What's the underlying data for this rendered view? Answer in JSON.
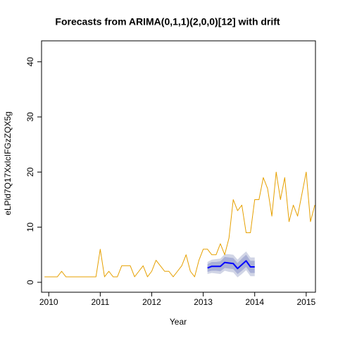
{
  "chart_data": {
    "type": "line",
    "title": "Forecasts from ARIMA(0,1,1)(2,0,0)[12] with drift",
    "x_label": "Year",
    "y_label": "eLPld7Q17XxIcIFGzZQX5g",
    "xlim": [
      2009.86,
      2015.18
    ],
    "ylim": [
      -1.8,
      43.8
    ],
    "xticks": [
      2010,
      2011,
      2012,
      2013,
      2014,
      2015
    ],
    "yticks": [
      0,
      10,
      20,
      30,
      40
    ],
    "intervals": [
      {
        "color": "#d1d5e6",
        "x": [
          2013.083,
          2013.167,
          2013.25,
          2013.333,
          2013.417,
          2013.5,
          2013.583,
          2013.667,
          2013.75,
          2013.833,
          2013.917,
          2014.0
        ],
        "lower": [
          1.5,
          1.7,
          1.6,
          1.5,
          2.1,
          1.9,
          1.8,
          0.9,
          1.5,
          2.2,
          1.1,
          1.1
        ],
        "upper": [
          3.7,
          4.1,
          4.2,
          4.3,
          5.1,
          5.1,
          5.0,
          4.1,
          4.9,
          5.6,
          4.5,
          4.5
        ]
      },
      {
        "color": "#a9b0d6",
        "x": [
          2013.083,
          2013.167,
          2013.25,
          2013.333,
          2013.417,
          2013.5,
          2013.583,
          2013.667,
          2013.75,
          2013.833,
          2013.917,
          2014.0
        ],
        "lower": [
          1.9,
          2.1,
          2.1,
          2.0,
          2.6,
          2.5,
          2.4,
          1.5,
          2.1,
          2.8,
          1.7,
          1.7
        ],
        "upper": [
          3.3,
          3.7,
          3.7,
          3.8,
          4.6,
          4.5,
          4.4,
          3.5,
          4.3,
          5.0,
          3.9,
          3.9
        ]
      }
    ],
    "series": [
      {
        "color": "#e6a000",
        "width": 1,
        "x": [
          2009.917,
          2010.0,
          2010.083,
          2010.167,
          2010.25,
          2010.333,
          2010.417,
          2010.5,
          2010.583,
          2010.667,
          2010.75,
          2010.833,
          2010.917,
          2011.0,
          2011.083,
          2011.167,
          2011.25,
          2011.333,
          2011.417,
          2011.5,
          2011.583,
          2011.667,
          2011.75,
          2011.833,
          2011.917,
          2012.0,
          2012.083,
          2012.167,
          2012.25,
          2012.333,
          2012.417,
          2012.5,
          2012.583,
          2012.667,
          2012.75,
          2012.833,
          2012.917,
          2013.0,
          2013.083,
          2013.167,
          2013.25,
          2013.333,
          2013.417,
          2013.5,
          2013.583,
          2013.667,
          2013.75,
          2013.833,
          2013.917,
          2014.0,
          2014.083,
          2014.167,
          2014.25,
          2014.333,
          2014.417,
          2014.5,
          2014.583,
          2014.667,
          2014.75,
          2014.833,
          2014.917,
          2015.0,
          2015.083,
          2015.167
        ],
        "values": [
          1,
          1,
          1,
          1,
          2,
          1,
          1,
          1,
          1,
          1,
          1,
          1,
          1,
          6,
          1,
          2,
          1,
          1,
          3,
          3,
          3,
          1,
          2,
          3,
          1,
          2,
          4,
          3,
          2,
          2,
          1,
          2,
          3,
          5,
          2,
          1,
          4,
          6,
          6,
          5,
          5,
          7,
          5,
          8,
          15,
          13,
          14,
          9,
          9,
          15,
          15,
          19,
          17,
          12,
          20,
          15,
          19,
          11,
          14,
          12,
          16,
          20,
          11,
          14
        ]
      },
      {
        "color": "#0000ff",
        "width": 2,
        "x": [
          2013.083,
          2013.167,
          2013.25,
          2013.333,
          2013.417,
          2013.5,
          2013.583,
          2013.667,
          2013.75,
          2013.833,
          2013.917,
          2014.0
        ],
        "values": [
          2.6,
          2.9,
          2.9,
          2.9,
          3.6,
          3.5,
          3.4,
          2.5,
          3.2,
          3.9,
          2.8,
          2.8
        ]
      }
    ]
  }
}
